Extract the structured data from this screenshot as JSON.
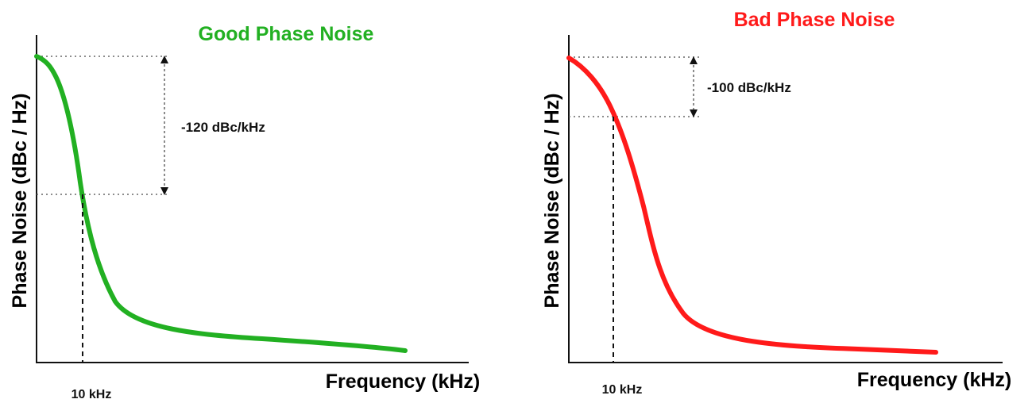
{
  "chart_data": [
    {
      "type": "line",
      "title": "Good Phase Noise",
      "ylabel": "Phase Noise (dBc / Hz)",
      "xlabel": "Frequency (kHz)",
      "xtick_label": "10 kHz",
      "annotation": "-120 dBc/kHz",
      "color": "#22b022"
    },
    {
      "type": "line",
      "title": "Bad Phase Noise",
      "ylabel": "Phase Noise (dBc / Hz)",
      "xlabel": "Frequency (kHz)",
      "xtick_label": "10 kHz",
      "annotation": "-100 dBc/kHz",
      "color": "#ff1a1a"
    }
  ]
}
